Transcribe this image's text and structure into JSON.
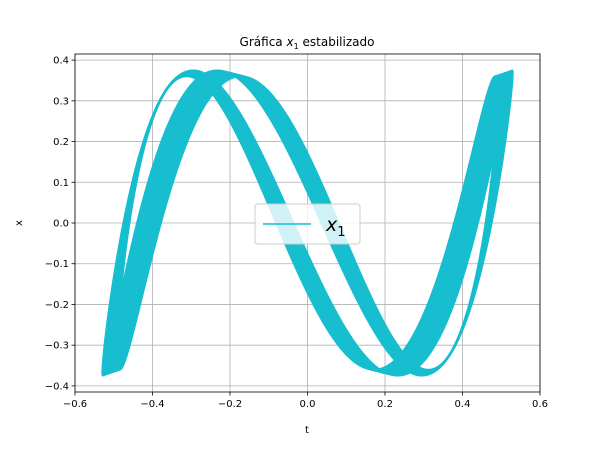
{
  "chart_data": {
    "type": "line",
    "title": "Gráfica",
    "title_var": "x",
    "title_sub": "1",
    "title_suffix": "estabilizado",
    "xlabel": "t",
    "ylabel": "x",
    "xlim": [
      -0.6,
      0.6
    ],
    "ylim": [
      -0.415,
      0.415
    ],
    "xticks": [
      -0.6,
      -0.4,
      -0.2,
      0.0,
      0.2,
      0.4,
      0.6
    ],
    "xtick_labels": [
      "−0.6",
      "−0.4",
      "−0.2",
      "0.0",
      "0.2",
      "0.4",
      "0.6"
    ],
    "yticks": [
      -0.4,
      -0.3,
      -0.2,
      -0.1,
      0.0,
      0.1,
      0.2,
      0.3,
      0.4
    ],
    "ytick_labels": [
      "−0.4",
      "−0.3",
      "−0.2",
      "−0.1",
      "0.0",
      "0.1",
      "0.2",
      "0.3",
      "0.4"
    ],
    "grid": true,
    "legend_position": "center",
    "series": [
      {
        "name": "x1",
        "legend_var": "x",
        "legend_sub": "1",
        "color": "#17becf",
        "shape": "lissajous",
        "amplitude_x": [
          0.49,
          0.53
        ],
        "amplitude_y": [
          0.36,
          0.375
        ],
        "frequency_ratio": 3,
        "phase_offsets": [
          -0.5,
          -0.2
        ]
      }
    ]
  }
}
